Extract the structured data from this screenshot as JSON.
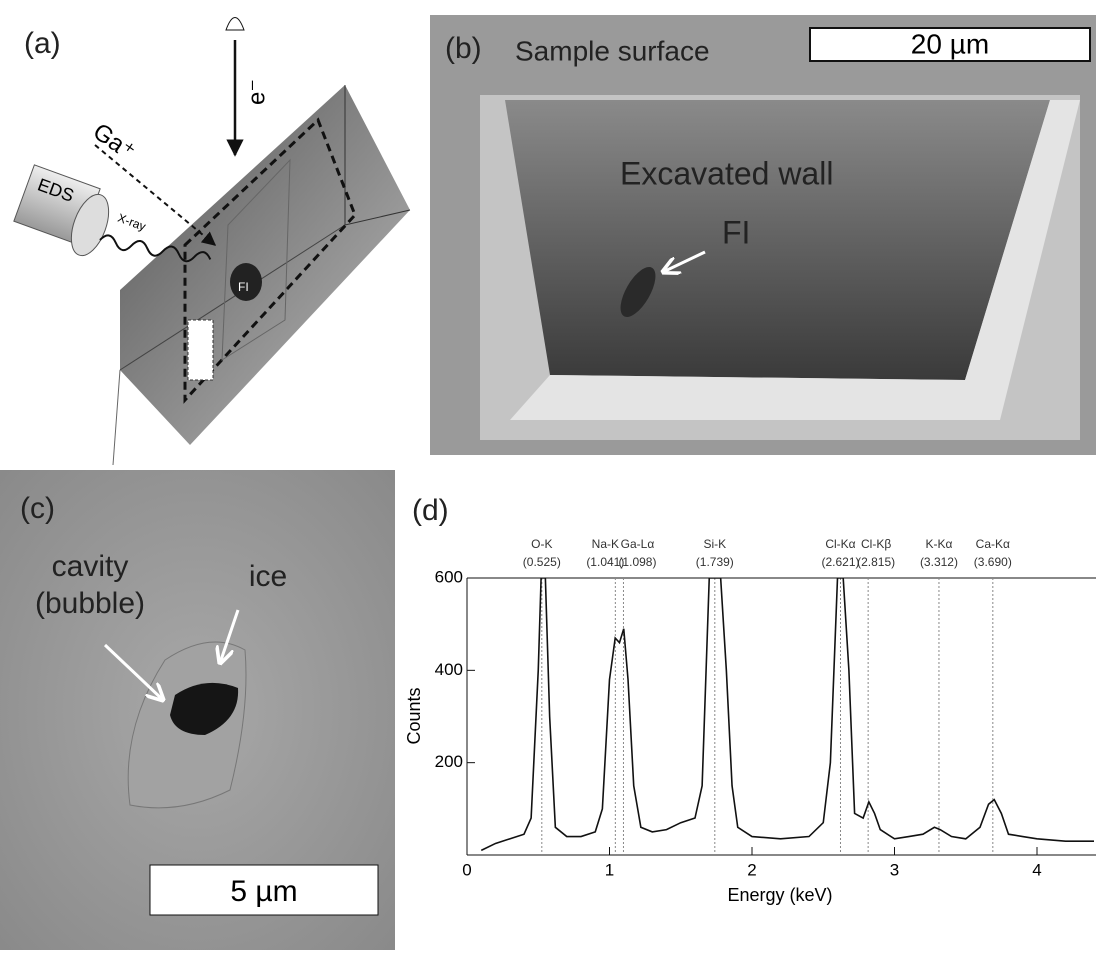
{
  "panels": {
    "a": {
      "label": "(a)",
      "electron": "e⁻",
      "ion": "Ga⁺",
      "detector": "EDS",
      "xray": "X-ray",
      "inclusion": "FI"
    },
    "b": {
      "label": "(b)",
      "surface": "Sample surface",
      "scale": "20 µm",
      "wall": "Excavated wall",
      "inclusion": "FI"
    },
    "c": {
      "label": "(c)",
      "cavity": [
        "cavity",
        "(bubble)"
      ],
      "ice": "ice",
      "scale": "5 µm"
    }
  },
  "chart_data": {
    "type": "line",
    "panel_label": "(d)",
    "xlabel": "Energy (keV)",
    "ylabel": "Counts",
    "xlim": [
      0,
      4.4
    ],
    "ylim": [
      0,
      600
    ],
    "xticks": [
      0,
      1,
      2,
      3,
      4
    ],
    "yticks": [
      200,
      400,
      600
    ],
    "color": "#111111",
    "peaks": [
      {
        "name": "O-K",
        "energy_label": "(0.525)",
        "energy": 0.525
      },
      {
        "name": "Na-K",
        "energy_label": "(1.041)",
        "energy": 1.041
      },
      {
        "name": "Ga-Lα",
        "energy_label": "(1.098)",
        "energy": 1.098
      },
      {
        "name": "Si-K",
        "energy_label": "(1.739)",
        "energy": 1.739
      },
      {
        "name": "Cl-Kα",
        "energy_label": "(2.621)",
        "energy": 2.621
      },
      {
        "name": "Cl-Kβ",
        "energy_label": "(2.815)",
        "energy": 2.815
      },
      {
        "name": "K-Kα",
        "energy_label": "(3.312)",
        "energy": 3.312
      },
      {
        "name": "Ca-Kα",
        "energy_label": "(3.690)",
        "energy": 3.69
      }
    ],
    "x": [
      0.1,
      0.2,
      0.3,
      0.4,
      0.45,
      0.5,
      0.52,
      0.55,
      0.58,
      0.62,
      0.7,
      0.8,
      0.9,
      0.95,
      1.0,
      1.04,
      1.07,
      1.1,
      1.13,
      1.17,
      1.22,
      1.3,
      1.4,
      1.5,
      1.6,
      1.65,
      1.7,
      1.74,
      1.78,
      1.82,
      1.86,
      1.9,
      2.0,
      2.2,
      2.4,
      2.5,
      2.55,
      2.6,
      2.64,
      2.68,
      2.72,
      2.78,
      2.82,
      2.86,
      2.9,
      3.0,
      3.1,
      3.2,
      3.28,
      3.32,
      3.4,
      3.5,
      3.6,
      3.66,
      3.7,
      3.75,
      3.8,
      3.9,
      4.0,
      4.2,
      4.4
    ],
    "values": [
      10,
      25,
      35,
      45,
      80,
      400,
      600,
      600,
      300,
      60,
      40,
      40,
      50,
      100,
      380,
      470,
      460,
      490,
      380,
      150,
      60,
      50,
      55,
      70,
      80,
      150,
      600,
      600,
      600,
      400,
      150,
      60,
      40,
      35,
      40,
      70,
      200,
      600,
      600,
      400,
      90,
      80,
      115,
      90,
      55,
      35,
      40,
      45,
      60,
      55,
      40,
      35,
      60,
      110,
      120,
      90,
      45,
      40,
      35,
      30,
      30
    ]
  }
}
